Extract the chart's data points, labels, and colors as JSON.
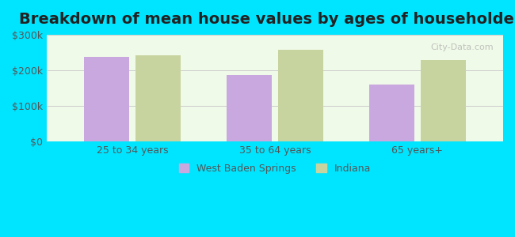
{
  "title": "Breakdown of mean house values by ages of householders",
  "categories": [
    "25 to 34 years",
    "35 to 64 years",
    "65 years+"
  ],
  "west_baden_springs": [
    237000,
    188000,
    160000
  ],
  "indiana": [
    243000,
    257000,
    228000
  ],
  "bar_color_wbs": "#c9a8e0",
  "bar_color_indiana": "#c8d4a0",
  "background_outer": "#00e5ff",
  "background_inner": "#f0fae8",
  "ylim": [
    0,
    300000
  ],
  "yticks": [
    0,
    100000,
    200000,
    300000
  ],
  "ytick_labels": [
    "$0",
    "$100k",
    "$200k",
    "$300k"
  ],
  "legend_label_wbs": "West Baden Springs",
  "legend_label_indiana": "Indiana",
  "title_fontsize": 14,
  "tick_fontsize": 9,
  "legend_fontsize": 9
}
